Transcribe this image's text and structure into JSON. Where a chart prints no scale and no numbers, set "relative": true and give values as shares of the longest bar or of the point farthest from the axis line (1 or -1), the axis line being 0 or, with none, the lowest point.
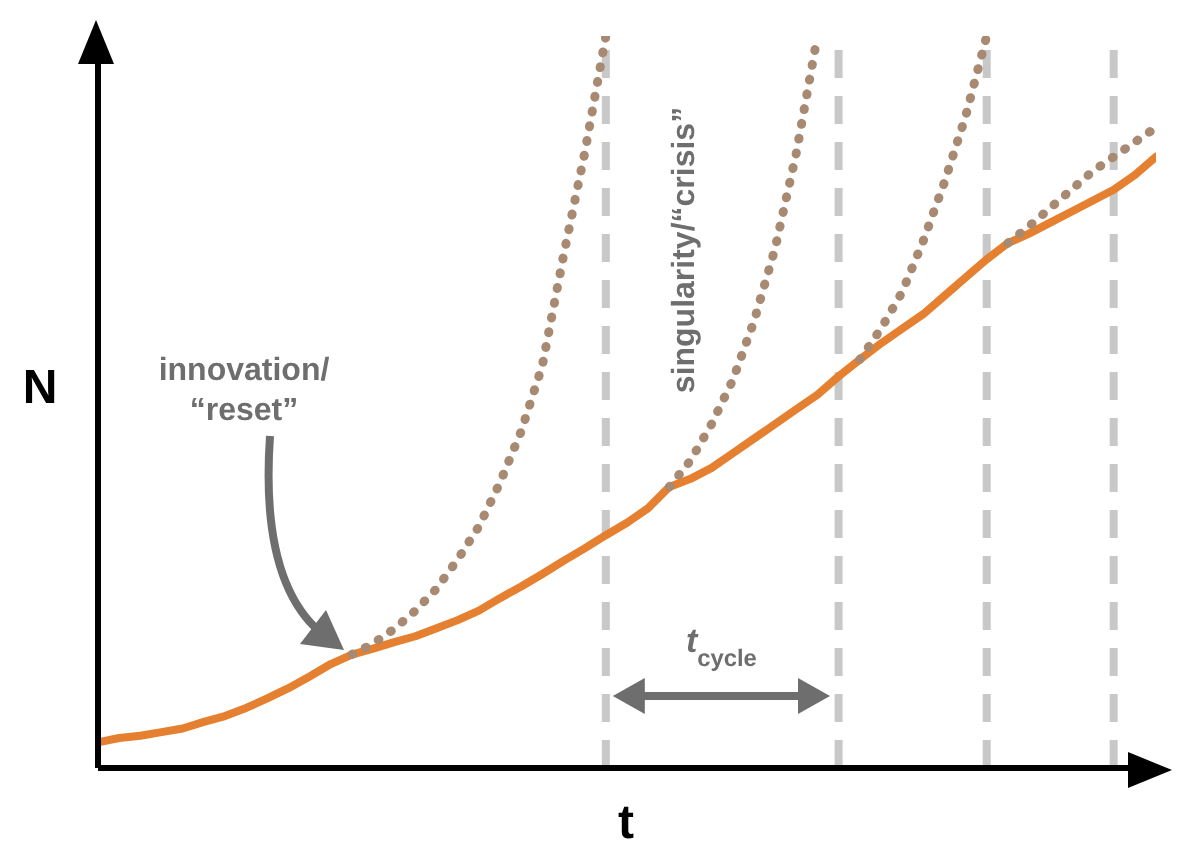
{
  "chart_data": {
    "type": "line",
    "relative": true,
    "xlabel": "t",
    "ylabel": "N",
    "marker": "none",
    "grid": "x",
    "categories": [
      null,
      null,
      null,
      null,
      null,
      null,
      null,
      null,
      null,
      null,
      null,
      null,
      null,
      null,
      null,
      null,
      null,
      null,
      null,
      null,
      null,
      null,
      null,
      null,
      null,
      null,
      null,
      null,
      null,
      null,
      null,
      null,
      null,
      null,
      null,
      null,
      null,
      null,
      null,
      null,
      null,
      null,
      null,
      null,
      null,
      null,
      null,
      null,
      null,
      null,
      null
    ],
    "series": [
      {
        "color": "#e58030",
        "line_style": "solid",
        "values": [
          0.035,
          0.041,
          0.044,
          0.049,
          0.054,
          0.063,
          0.071,
          0.082,
          0.095,
          0.109,
          0.125,
          0.142,
          0.155,
          0.163,
          0.172,
          0.18,
          0.191,
          0.202,
          0.215,
          0.232,
          0.248,
          0.265,
          0.283,
          0.3,
          0.318,
          0.335,
          0.355,
          0.384,
          0.395,
          0.41,
          0.43,
          0.45,
          0.47,
          0.49,
          0.51,
          0.535,
          0.558,
          0.58,
          0.6,
          0.62,
          0.645,
          0.67,
          0.695,
          0.717,
          0.73,
          0.745,
          0.76,
          0.775,
          0.79,
          0.81,
          0.835
        ]
      },
      {
        "color": "#a88a72",
        "line_style": "dotted",
        "values": [
          null,
          null,
          null,
          null,
          null,
          null,
          null,
          null,
          null,
          null,
          null,
          null,
          0.155,
          0.17,
          0.19,
          0.215,
          0.245,
          0.285,
          0.33,
          0.39,
          0.46,
          0.55,
          0.7,
          0.84,
          1,
          null,
          null,
          null,
          null,
          null,
          null,
          null,
          null,
          null,
          null,
          null,
          null,
          null,
          null,
          null,
          null,
          null,
          null,
          null,
          null,
          null,
          null,
          null,
          null,
          null,
          null
        ]
      },
      {
        "color": "#a88a72",
        "line_style": "dotted",
        "values": [
          null,
          null,
          null,
          null,
          null,
          null,
          null,
          null,
          null,
          null,
          null,
          null,
          null,
          null,
          null,
          null,
          null,
          null,
          null,
          null,
          null,
          null,
          null,
          null,
          null,
          null,
          null,
          0.384,
          0.42,
          0.47,
          0.53,
          0.61,
          0.71,
          0.84,
          1,
          null,
          null,
          null,
          null,
          null,
          null,
          null,
          null,
          null,
          null,
          null,
          null,
          null,
          null,
          null,
          null
        ]
      },
      {
        "color": "#a88a72",
        "line_style": "dotted",
        "values": [
          null,
          null,
          null,
          null,
          null,
          null,
          null,
          null,
          null,
          null,
          null,
          null,
          null,
          null,
          null,
          null,
          null,
          null,
          null,
          null,
          null,
          null,
          null,
          null,
          null,
          null,
          null,
          null,
          null,
          null,
          null,
          null,
          null,
          null,
          null,
          null,
          0.558,
          0.6,
          0.65,
          0.72,
          0.8,
          0.89,
          1,
          null,
          null,
          null,
          null,
          null,
          null,
          null,
          null
        ]
      },
      {
        "color": "#a88a72",
        "line_style": "dotted",
        "values": [
          null,
          null,
          null,
          null,
          null,
          null,
          null,
          null,
          null,
          null,
          null,
          null,
          null,
          null,
          null,
          null,
          null,
          null,
          null,
          null,
          null,
          null,
          null,
          null,
          null,
          null,
          null,
          null,
          null,
          null,
          null,
          null,
          null,
          null,
          null,
          null,
          null,
          null,
          null,
          null,
          null,
          null,
          null,
          0.717,
          0.74,
          0.765,
          0.79,
          0.815,
          0.835,
          0.855,
          0.875
        ]
      }
    ],
    "annotations": [
      "innovation/\n“reset”",
      "singularity/“crisis”",
      "t$_{cycle}$"
    ]
  }
}
